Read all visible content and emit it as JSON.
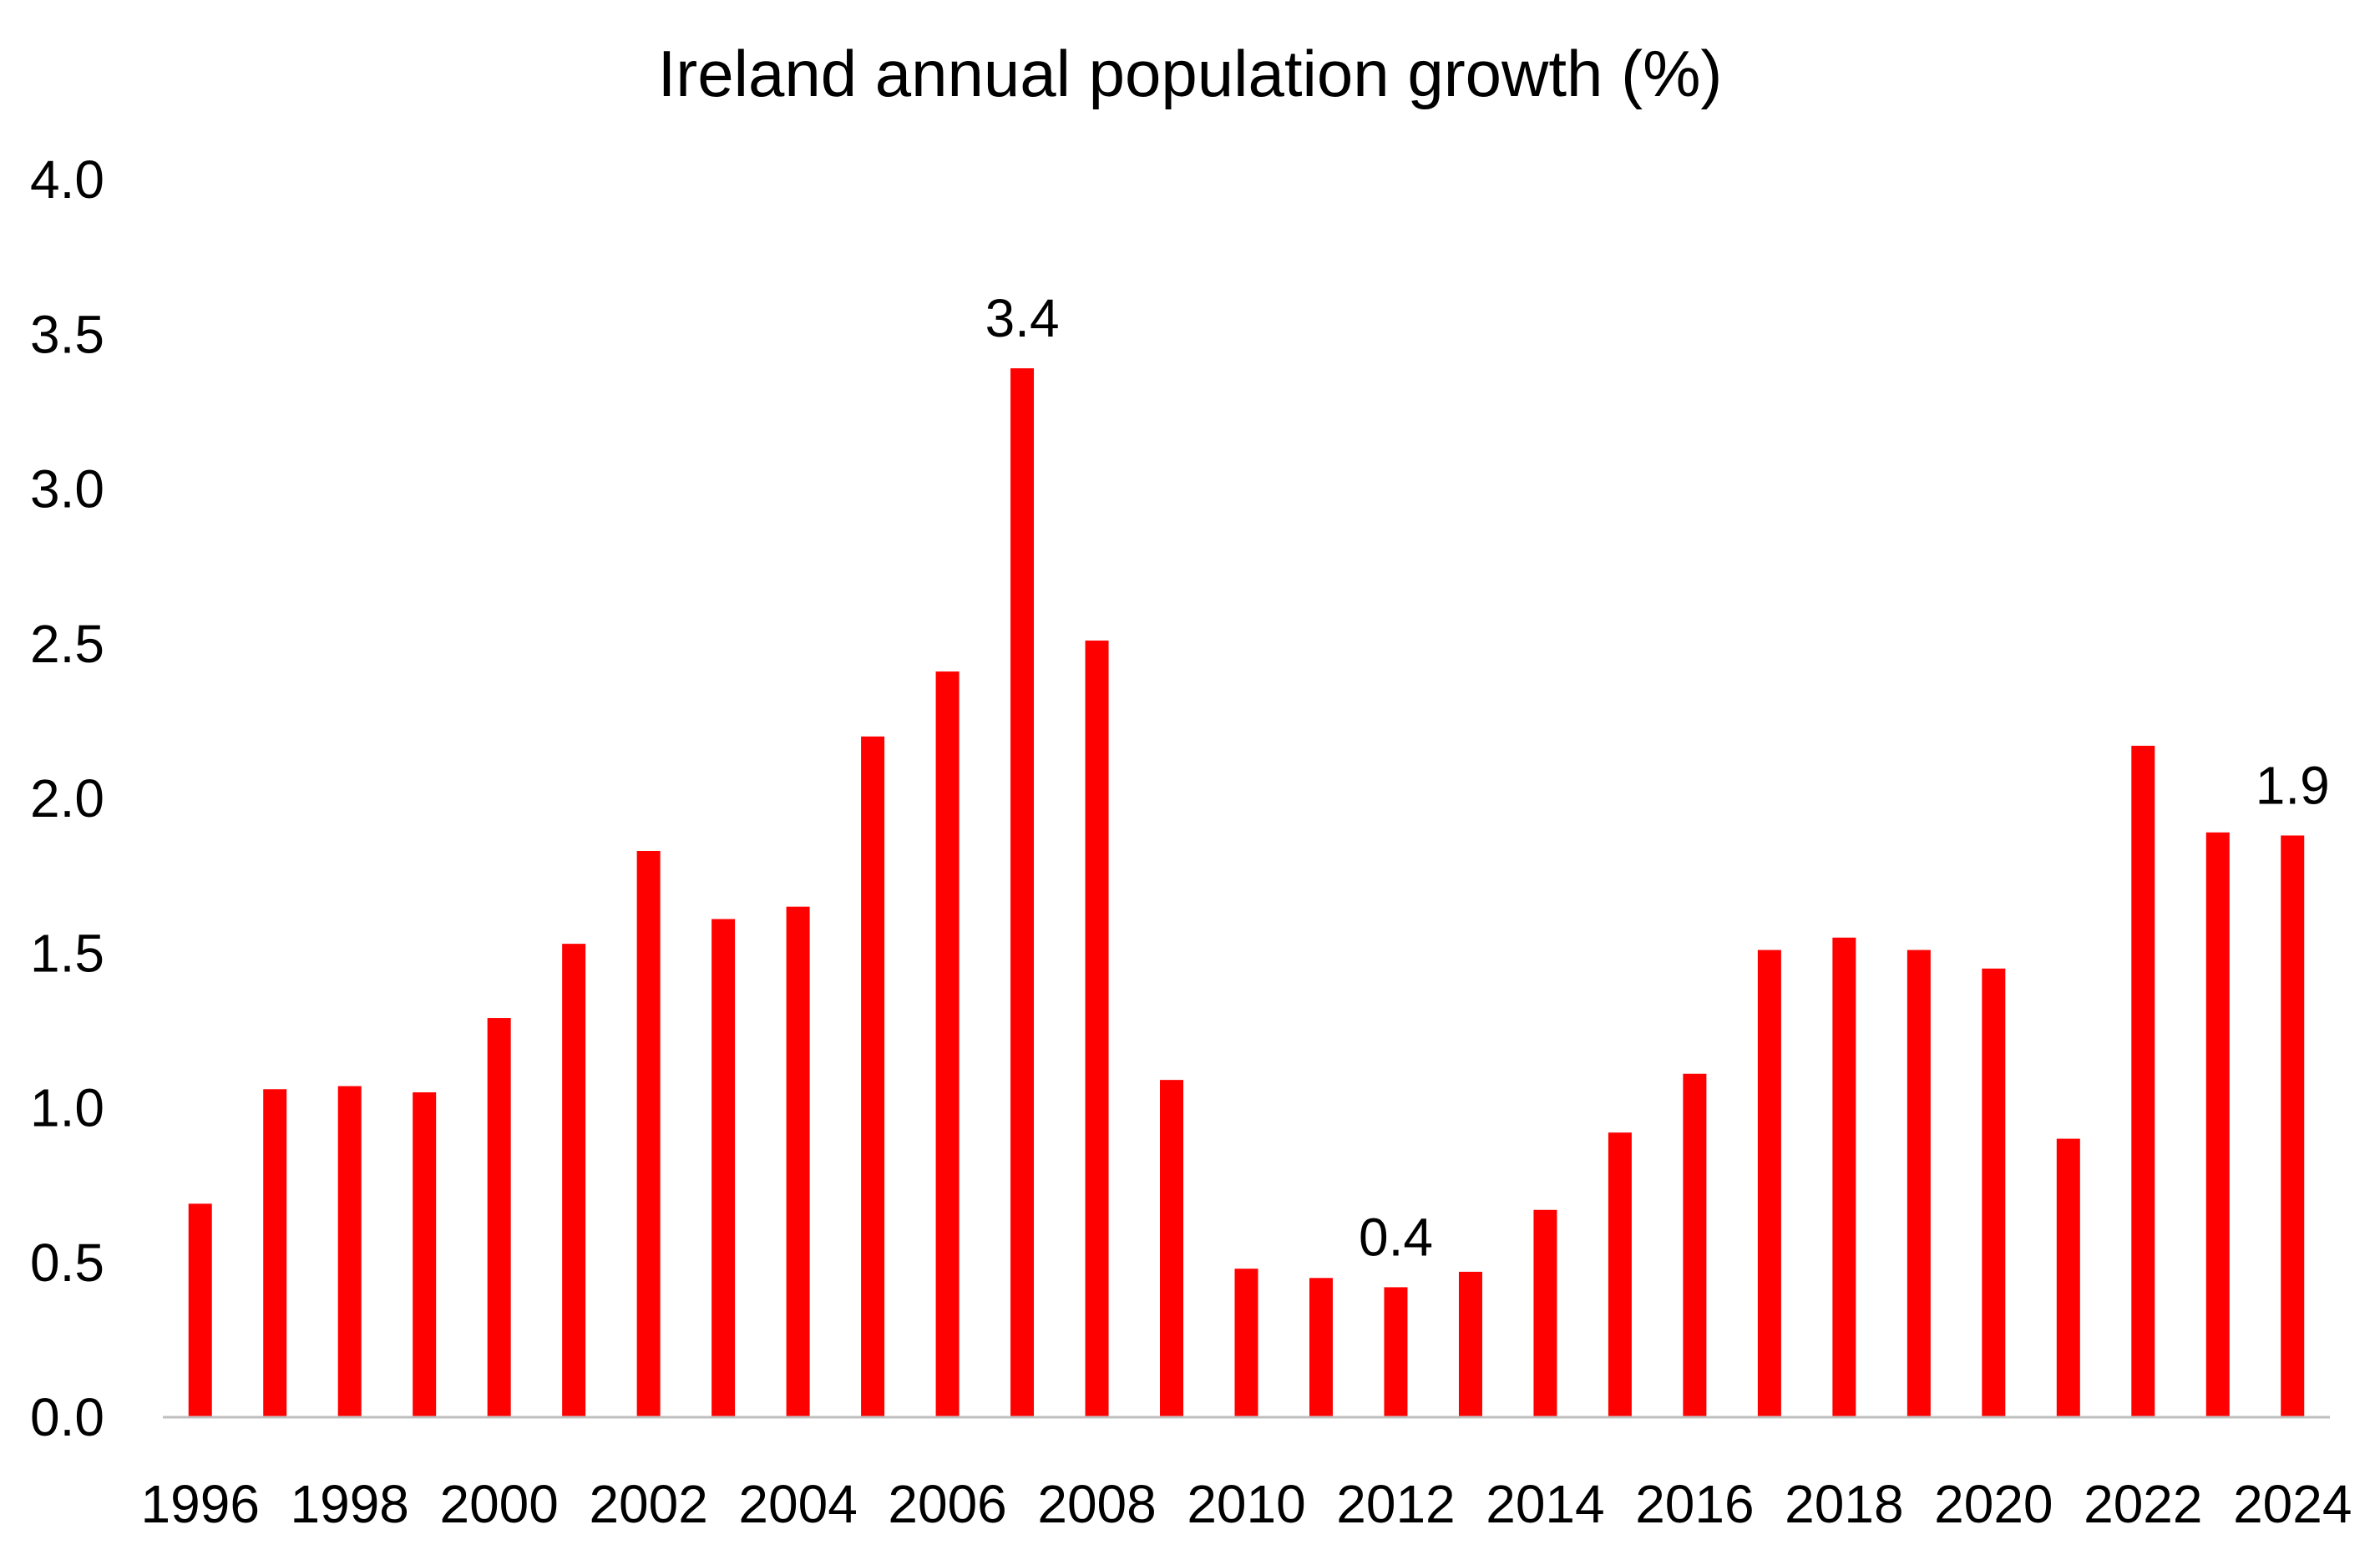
{
  "chart_data": {
    "type": "bar",
    "title": "Ireland annual population growth (%)",
    "xlabel": "",
    "ylabel": "",
    "categories": [
      "1996",
      "1997",
      "1998",
      "1999",
      "2000",
      "2001",
      "2002",
      "2003",
      "2004",
      "2005",
      "2006",
      "2007",
      "2008",
      "2009",
      "2010",
      "2011",
      "2012",
      "2013",
      "2014",
      "2015",
      "2016",
      "2017",
      "2018",
      "2019",
      "2020",
      "2021",
      "2022",
      "2023",
      "2024"
    ],
    "x_tick_labels": [
      "1996",
      "1998",
      "2000",
      "2002",
      "2004",
      "2006",
      "2008",
      "2010",
      "2012",
      "2014",
      "2016",
      "2018",
      "2020",
      "2022",
      "2024"
    ],
    "values": [
      0.69,
      1.06,
      1.07,
      1.05,
      1.29,
      1.53,
      1.83,
      1.61,
      1.65,
      2.2,
      2.41,
      3.39,
      2.51,
      1.09,
      0.48,
      0.45,
      0.42,
      0.47,
      0.67,
      0.92,
      1.11,
      1.51,
      1.55,
      1.51,
      1.45,
      0.9,
      2.17,
      1.89,
      1.88
    ],
    "y_ticks": [
      "0.0",
      "0.5",
      "1.0",
      "1.5",
      "2.0",
      "2.5",
      "3.0",
      "3.5",
      "4.0"
    ],
    "ylim": [
      0,
      4.0
    ],
    "grid": false,
    "legend": "none",
    "data_labels": [
      {
        "category": "2007",
        "text": "3.4"
      },
      {
        "category": "2012",
        "text": "0.4"
      },
      {
        "category": "2024",
        "text": "1.9"
      }
    ],
    "colors": {
      "bar": "#ff0000",
      "axis": "#bfbfbf",
      "text": "#000000"
    }
  }
}
